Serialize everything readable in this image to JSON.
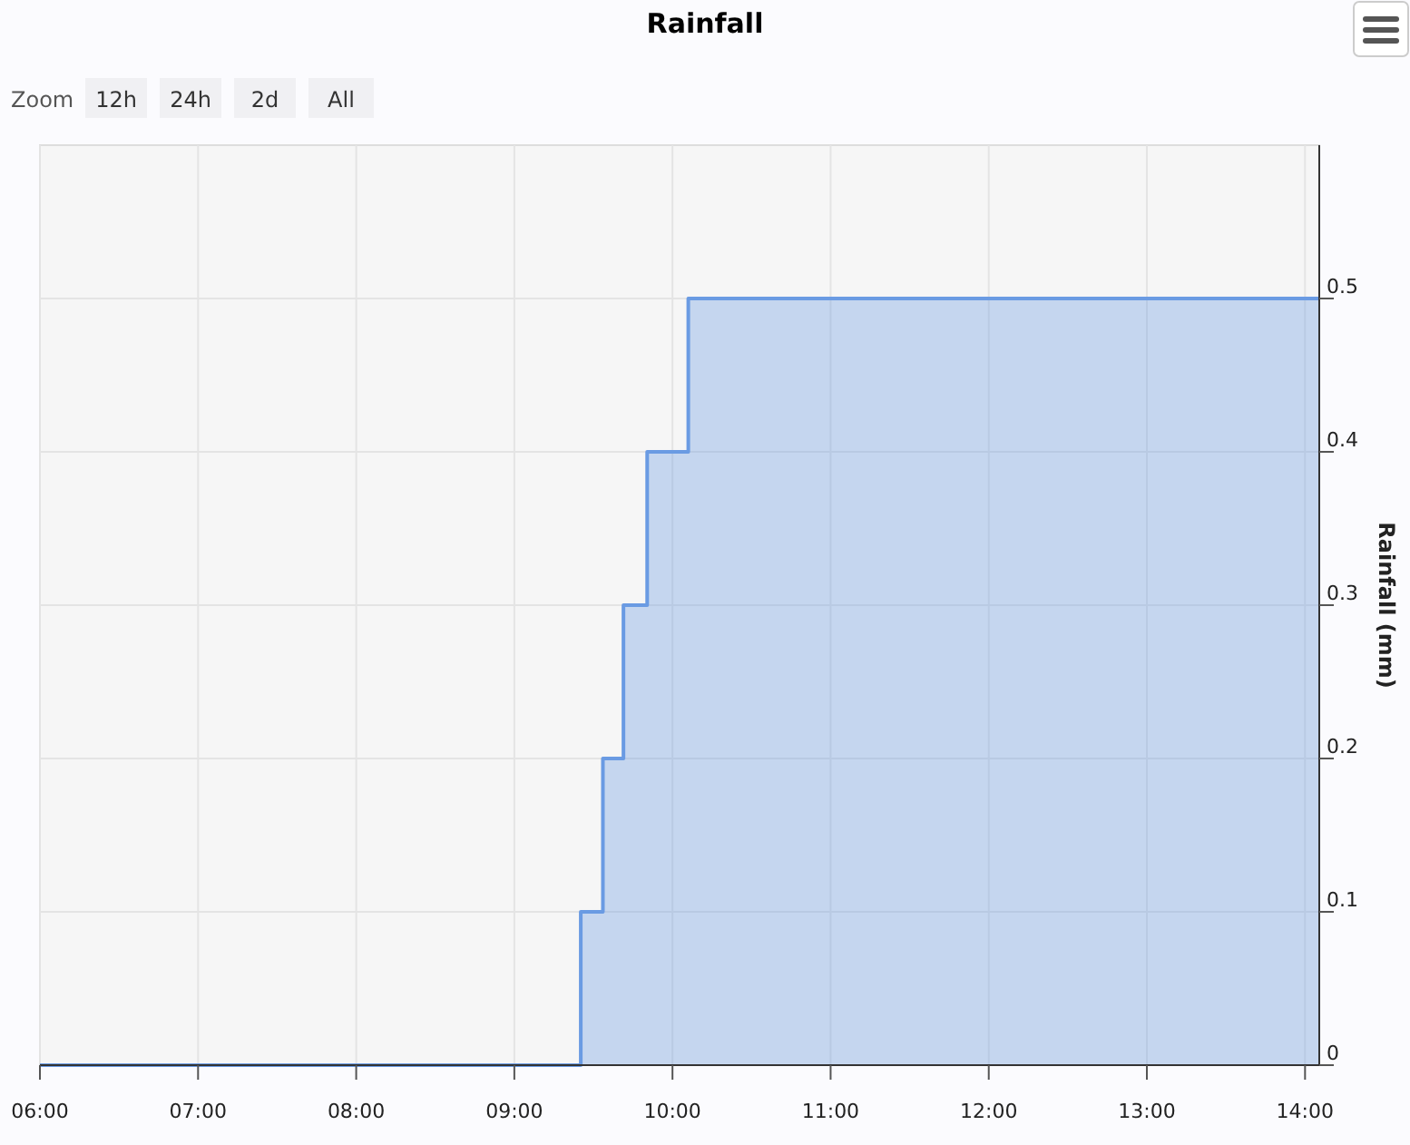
{
  "chart_data": {
    "type": "step",
    "title": "Rainfall",
    "ylabel": "Rainfall (mm)",
    "x": [
      6,
      9.42,
      9.56,
      9.69,
      9.84,
      10.1,
      14.09
    ],
    "series": [
      {
        "color": "#6a9be3",
        "values": [
          0,
          0.1,
          0.2,
          0.3,
          0.4,
          0.5,
          0.5
        ]
      }
    ],
    "xlim": [
      6,
      14.09
    ],
    "xticks": [
      {
        "value": 6,
        "label": "06:00"
      },
      {
        "value": 7,
        "label": "07:00"
      },
      {
        "value": 8,
        "label": "08:00"
      },
      {
        "value": 9,
        "label": "09:00"
      },
      {
        "value": 10,
        "label": "10:00"
      },
      {
        "value": 11,
        "label": "11:00"
      },
      {
        "value": 12,
        "label": "12:00"
      },
      {
        "value": 13,
        "label": "13:00"
      },
      {
        "value": 14,
        "label": "14:00"
      }
    ],
    "ylim": [
      0,
      0.6
    ],
    "yticks": [
      0,
      0.1,
      0.2,
      0.3,
      0.4,
      0.5
    ],
    "grid": true,
    "marker": "none",
    "annotations": [
      "Zoom",
      "12h",
      "24h",
      "2d",
      "All"
    ]
  }
}
